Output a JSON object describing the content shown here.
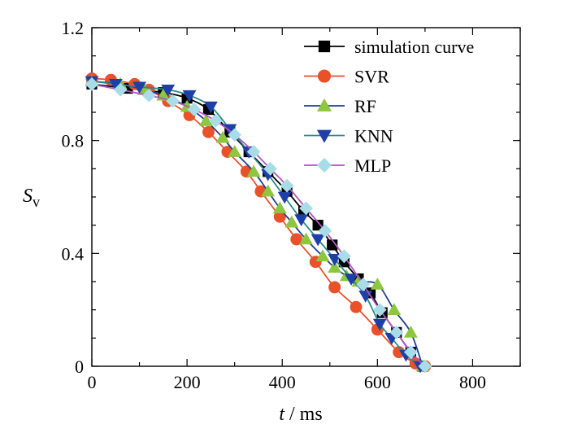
{
  "chart_data": {
    "type": "line",
    "xlabel_var": "t",
    "xlabel_unit": " / ms",
    "ylabel_var": "S",
    "ylabel_sub": "v",
    "xlim": [
      0,
      900
    ],
    "ylim": [
      0,
      1.2
    ],
    "x_ticks": [
      0,
      200,
      400,
      600,
      800
    ],
    "x_tick_labels": [
      "0",
      "200",
      "400",
      "600",
      "800"
    ],
    "y_ticks": [
      0,
      0.4,
      0.8,
      1.2
    ],
    "y_tick_labels": [
      "0",
      "0.4",
      "0.8",
      "1.2"
    ],
    "legend_position": "top-right",
    "series": [
      {
        "name": "simulation curve",
        "color": "#000000",
        "marker": "square",
        "x": [
          0,
          75,
          150,
          200,
          245,
          290,
          330,
          370,
          410,
          445,
          475,
          505,
          530,
          560,
          585,
          610,
          640,
          670,
          695
        ],
        "y": [
          1.0,
          0.985,
          0.97,
          0.95,
          0.91,
          0.83,
          0.76,
          0.69,
          0.62,
          0.55,
          0.5,
          0.43,
          0.37,
          0.31,
          0.26,
          0.19,
          0.12,
          0.05,
          0.0
        ]
      },
      {
        "name": "SVR",
        "color": "#e8512a",
        "marker": "circle",
        "x": [
          0,
          40,
          90,
          120,
          160,
          205,
          245,
          285,
          325,
          355,
          395,
          430,
          470,
          510,
          555,
          600,
          645,
          680,
          700
        ],
        "y": [
          1.02,
          1.015,
          1.0,
          0.98,
          0.94,
          0.89,
          0.83,
          0.76,
          0.69,
          0.62,
          0.53,
          0.45,
          0.37,
          0.28,
          0.21,
          0.13,
          0.05,
          0.01,
          0.0
        ]
      },
      {
        "name": "RF",
        "color": "#1f3f8f",
        "marker": "triangle-up",
        "marker_color": "#8dc63f",
        "x": [
          0,
          60,
          110,
          150,
          200,
          240,
          275,
          300,
          340,
          370,
          395,
          420,
          450,
          485,
          510,
          535,
          560,
          600,
          635,
          670,
          695
        ],
        "y": [
          1.01,
          1.0,
          0.98,
          0.96,
          0.92,
          0.87,
          0.81,
          0.76,
          0.69,
          0.62,
          0.56,
          0.51,
          0.45,
          0.39,
          0.35,
          0.32,
          0.3,
          0.29,
          0.2,
          0.12,
          0.0
        ]
      },
      {
        "name": "KNN",
        "color": "#2a8a8a",
        "marker": "triangle-down",
        "marker_color": "#1f3fa8",
        "x": [
          0,
          50,
          100,
          160,
          205,
          250,
          290,
          330,
          370,
          405,
          440,
          475,
          510,
          545,
          575,
          605,
          630,
          660,
          690
        ],
        "y": [
          1.01,
          1.0,
          0.99,
          0.98,
          0.96,
          0.92,
          0.84,
          0.76,
          0.68,
          0.6,
          0.52,
          0.45,
          0.38,
          0.31,
          0.25,
          0.15,
          0.1,
          0.04,
          0.0
        ]
      },
      {
        "name": "MLP",
        "color": "#b055c0",
        "marker": "diamond",
        "marker_color": "#a8dde8",
        "x": [
          0,
          60,
          120,
          170,
          215,
          260,
          300,
          340,
          375,
          410,
          450,
          490,
          530,
          570,
          605,
          640,
          670,
          700
        ],
        "y": [
          1.0,
          0.98,
          0.96,
          0.94,
          0.91,
          0.87,
          0.82,
          0.76,
          0.7,
          0.64,
          0.56,
          0.48,
          0.39,
          0.29,
          0.2,
          0.12,
          0.05,
          0.0
        ]
      }
    ]
  }
}
